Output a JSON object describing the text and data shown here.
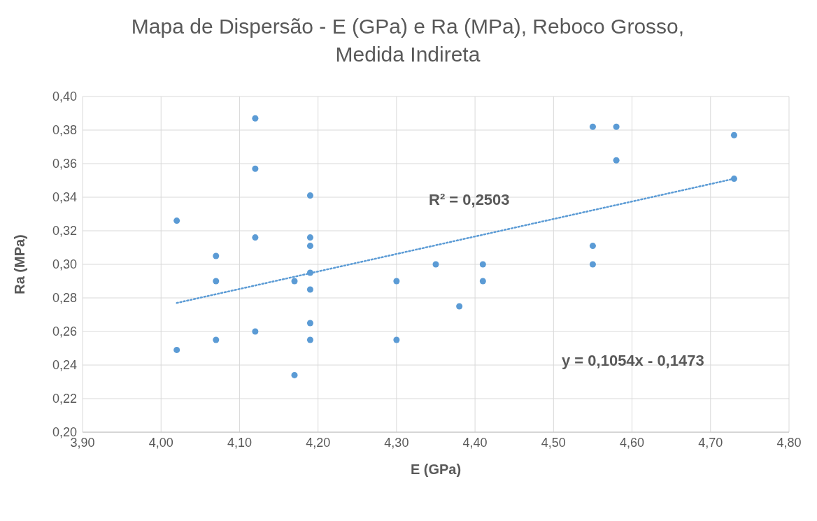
{
  "chart_data": {
    "type": "scatter",
    "title": "Mapa de Dispersão - E (GPa) e Ra (MPa), Reboco Grosso, Medida Indireta",
    "xlabel": "E (GPa)",
    "ylabel": "Ra (MPa)",
    "annotations": [
      "R² = 0,2503",
      "y = 0,1054x - 0,1473"
    ],
    "series": [
      {
        "color": "#5b9bd5",
        "marker": "circle",
        "x": [
          4.02,
          4.02,
          4.07,
          4.07,
          4.07,
          4.12,
          4.12,
          4.12,
          4.12,
          4.17,
          4.17,
          4.19,
          4.19,
          4.19,
          4.19,
          4.19,
          4.19,
          4.19,
          4.3,
          4.3,
          4.35,
          4.38,
          4.41,
          4.41,
          4.55,
          4.55,
          4.55,
          4.58,
          4.58,
          4.73,
          4.73
        ],
        "values": [
          0.249,
          0.326,
          0.305,
          0.29,
          0.255,
          0.387,
          0.357,
          0.316,
          0.26,
          0.29,
          0.234,
          0.341,
          0.316,
          0.311,
          0.295,
          0.285,
          0.265,
          0.255,
          0.29,
          0.255,
          0.3,
          0.275,
          0.3,
          0.29,
          0.382,
          0.311,
          0.3,
          0.382,
          0.362,
          0.377,
          0.351
        ]
      },
      {
        "type": "line",
        "color": "#5b9bd5",
        "line_style": "dotted",
        "marker": "none",
        "x": [
          4.02,
          4.73
        ],
        "values": [
          0.277,
          0.351
        ]
      }
    ],
    "xlim": [
      3.9,
      4.8
    ],
    "xticks": [
      {
        "value": 3.9,
        "label": "3,90"
      },
      {
        "value": 4.0,
        "label": "4,00"
      },
      {
        "value": 4.1,
        "label": "4,10"
      },
      {
        "value": 4.2,
        "label": "4,20"
      },
      {
        "value": 4.3,
        "label": "4,30"
      },
      {
        "value": 4.4,
        "label": "4,40"
      },
      {
        "value": 4.5,
        "label": "4,50"
      },
      {
        "value": 4.6,
        "label": "4,60"
      },
      {
        "value": 4.7,
        "label": "4,70"
      },
      {
        "value": 4.8,
        "label": "4,80"
      }
    ],
    "ylim": [
      0.2,
      0.4
    ],
    "yticks": [
      {
        "value": 0.2,
        "label": "0,20"
      },
      {
        "value": 0.22,
        "label": "0,22"
      },
      {
        "value": 0.24,
        "label": "0,24"
      },
      {
        "value": 0.26,
        "label": "0,26"
      },
      {
        "value": 0.28,
        "label": "0,28"
      },
      {
        "value": 0.3,
        "label": "0,30"
      },
      {
        "value": 0.32,
        "label": "0,32"
      },
      {
        "value": 0.34,
        "label": "0,34"
      },
      {
        "value": 0.36,
        "label": "0,36"
      },
      {
        "value": 0.38,
        "label": "0,38"
      },
      {
        "value": 0.4,
        "label": "0,40"
      }
    ],
    "grid": true,
    "legend": false
  }
}
